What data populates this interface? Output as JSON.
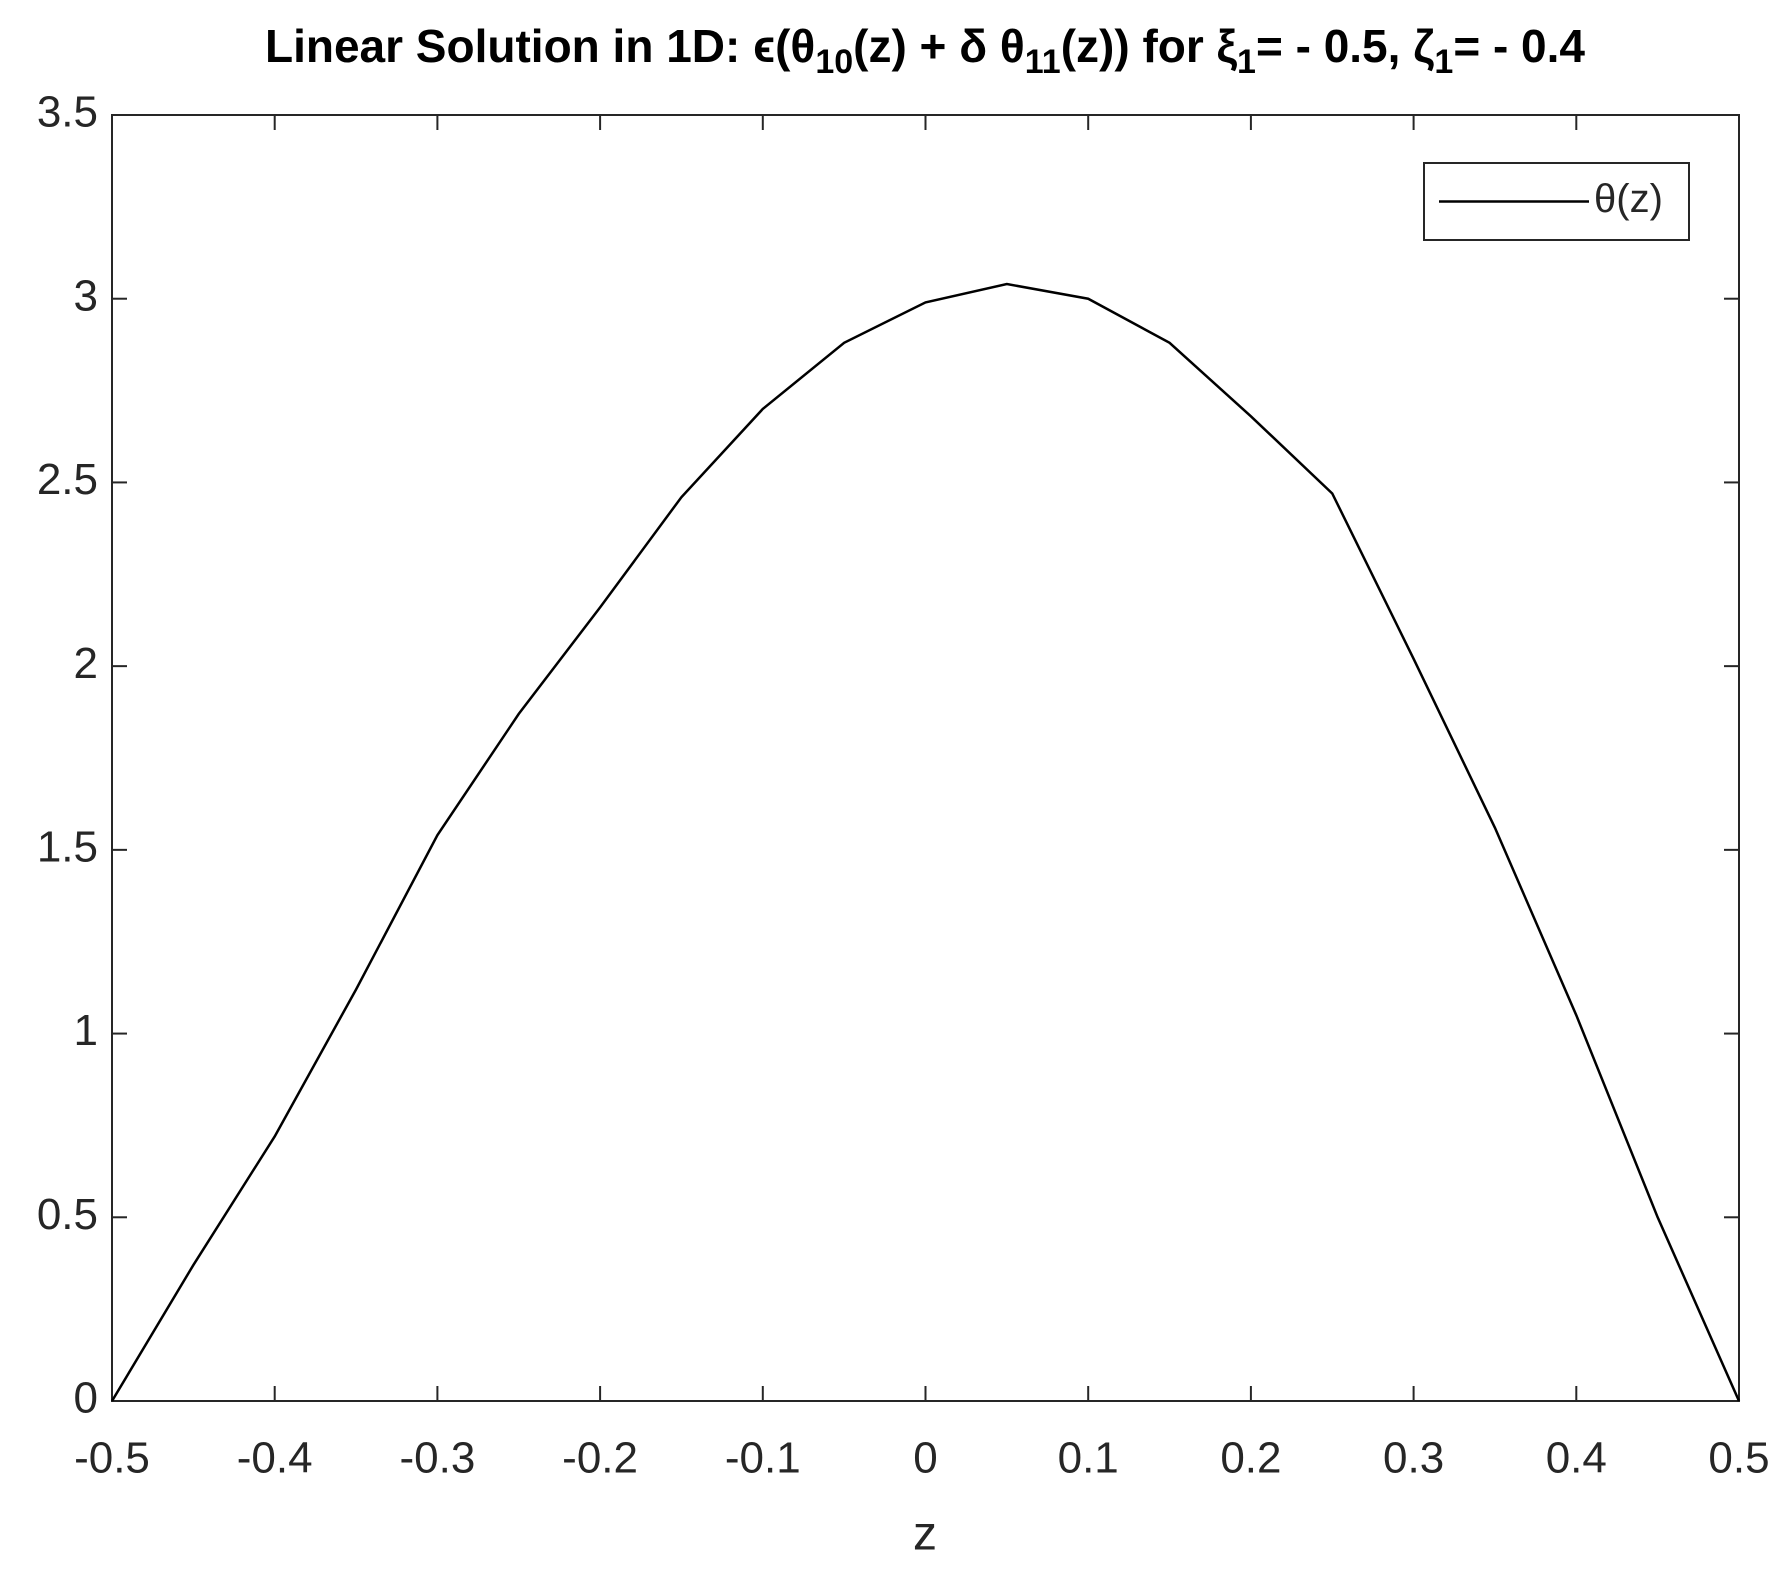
{
  "chart_data": {
    "type": "line",
    "title": [
      "Linear Solution in 1D:  ϵ(θ",
      "10",
      "(z) + δ θ",
      "11",
      "(z)) for ξ",
      "1",
      "= - 0.5,  ζ",
      "1",
      "= - 0.4"
    ],
    "x_label": "z",
    "x": [
      -0.5,
      -0.45,
      -0.4,
      -0.35,
      -0.3,
      -0.25,
      -0.2,
      -0.15,
      -0.1,
      -0.05,
      0,
      0.05,
      0.1,
      0.15,
      0.2,
      0.25,
      0.3,
      0.35,
      0.4,
      0.45,
      0.5
    ],
    "series": [
      {
        "name": "θ(z)",
        "color": "#000000",
        "values": [
          0,
          0.37,
          0.72,
          1.12,
          1.54,
          1.87,
          2.16,
          2.46,
          2.7,
          2.88,
          2.99,
          3.04,
          3.0,
          2.88,
          2.68,
          2.47,
          2.02,
          1.56,
          1.05,
          0.5,
          0
        ]
      }
    ],
    "xlim": [
      -0.5,
      0.5
    ],
    "xticks": [
      -0.5,
      -0.4,
      -0.3,
      -0.2,
      -0.1,
      0,
      0.1,
      0.2,
      0.3,
      0.4,
      0.5
    ],
    "ylim": [
      0,
      3.5
    ],
    "yticks": [
      0,
      0.5,
      1,
      1.5,
      2,
      2.5,
      3,
      3.5
    ],
    "legend": "northeast"
  }
}
